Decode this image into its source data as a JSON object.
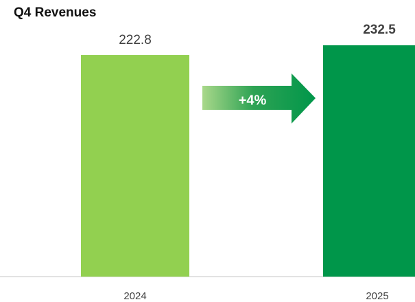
{
  "chart_data": {
    "type": "bar",
    "title": "Q4 Revenues",
    "categories": [
      "2024",
      "2025"
    ],
    "values": [
      222.8,
      232.5
    ],
    "colors": [
      "#92d050",
      "#00964a"
    ],
    "annotation": "+4%"
  }
}
